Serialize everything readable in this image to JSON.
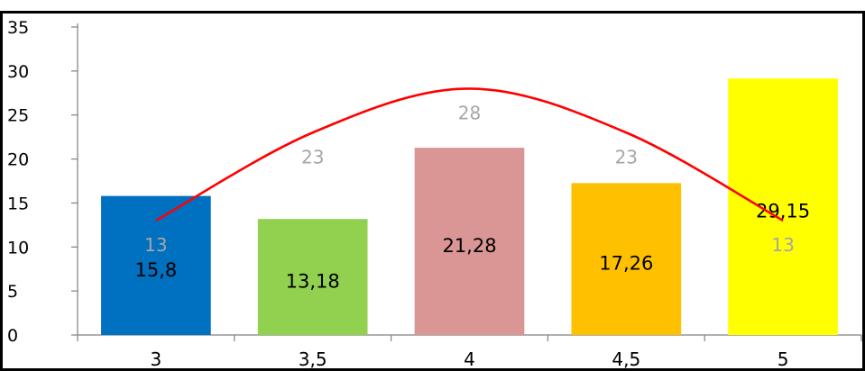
{
  "chart_data": {
    "type": "bar",
    "categories": [
      "3",
      "3,5",
      "4",
      "4,5",
      "5"
    ],
    "series": [
      {
        "values": [
          15.8,
          13.18,
          21.28,
          17.26,
          29.15
        ],
        "value_labels": [
          "15,8",
          "13,18",
          "21,28",
          "17,26",
          "29,15"
        ],
        "colors": [
          "#0070c0",
          "#92d050",
          "#d99694",
          "#ffc000",
          "#ffff00"
        ]
      },
      {
        "type": "line",
        "smooth": true,
        "color": "#ff0000",
        "values": [
          13,
          23,
          28,
          23,
          13
        ],
        "value_labels": [
          "13",
          "23",
          "28",
          "23",
          "13"
        ]
      }
    ],
    "ylim": [
      0,
      35
    ],
    "yticks": [
      "0",
      "5",
      "10",
      "15",
      "20",
      "25",
      "30",
      "35"
    ],
    "ytick_values": [
      0,
      5,
      10,
      15,
      20,
      25,
      30,
      35
    ],
    "grid": false,
    "legend": "none",
    "title": "",
    "xlabel": "",
    "ylabel": ""
  }
}
